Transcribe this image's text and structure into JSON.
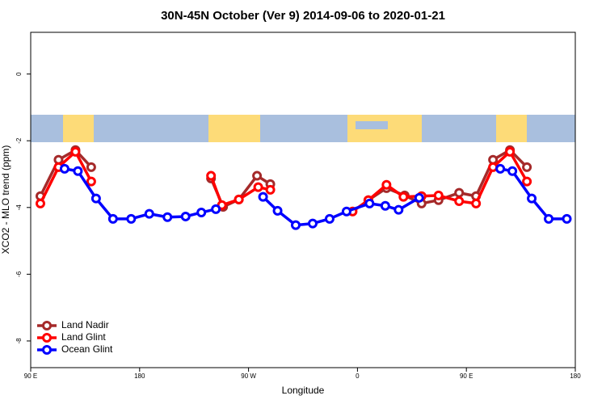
{
  "chart_data": {
    "type": "line",
    "title": "30N-45N October (Ver 9)   2014-09-06 to 2020-01-21",
    "x_label": "Longitude",
    "y_label": "XCO2 - MLO trend (ppm)",
    "xlim": [
      90,
      540
    ],
    "ylim": [
      -8.8,
      1.25
    ],
    "xticks": [
      {
        "value": 90,
        "label": "90 E"
      },
      180,
      {
        "value": 270,
        "label": "90 W"
      },
      {
        "value": 360,
        "label": "0"
      },
      {
        "value": 450,
        "label": "90 E"
      },
      {
        "value": 540,
        "label": "180"
      }
    ],
    "yticks": [
      0,
      -2,
      -4,
      -6,
      -8
    ],
    "legend": "bottomleft",
    "series": [
      {
        "name": "Land Nadir",
        "color": "#a52a2a",
        "x": [
          98,
          113,
          127,
          140,
          null,
          239,
          249,
          262,
          277,
          288,
          null,
          369,
          384,
          399,
          413,
          427,
          444,
          458,
          472,
          486,
          500
        ],
        "values": [
          -3.66,
          -2.57,
          -2.28,
          -2.79,
          null,
          -3.13,
          -3.98,
          -3.76,
          -3.05,
          -3.3,
          null,
          -3.78,
          -3.42,
          -3.64,
          -3.88,
          -3.78,
          -3.56,
          -3.66,
          -2.57,
          -2.28,
          -2.79
        ]
      },
      {
        "name": "Land Glint",
        "color": "#ff0000",
        "x": [
          98,
          113,
          127,
          140,
          null,
          239,
          248,
          262,
          278,
          288,
          null,
          356,
          369,
          384,
          398,
          413,
          427,
          444,
          458,
          472,
          486,
          500
        ],
        "values": [
          -3.88,
          -2.79,
          -2.33,
          -3.22,
          null,
          -3.05,
          -3.93,
          -3.76,
          -3.39,
          -3.47,
          null,
          -4.12,
          -3.78,
          -3.32,
          -3.68,
          -3.66,
          -3.64,
          -3.81,
          -3.88,
          -2.79,
          -2.33,
          -3.22
        ]
      },
      {
        "name": "Ocean Glint",
        "color": "#0000ff",
        "x": [
          118,
          129,
          144,
          158,
          173,
          188,
          203,
          218,
          231,
          243,
          null,
          282,
          294,
          309,
          323,
          337,
          351,
          370,
          383,
          394,
          411,
          null,
          478,
          488,
          504,
          518,
          533
        ],
        "values": [
          -2.84,
          -2.91,
          -3.73,
          -4.34,
          -4.34,
          -4.19,
          -4.29,
          -4.27,
          -4.15,
          -4.05,
          null,
          -3.68,
          -4.1,
          -4.53,
          -4.48,
          -4.34,
          -4.12,
          -3.88,
          -3.95,
          -4.07,
          -3.71,
          null,
          -2.84,
          -2.91,
          -3.73,
          -4.34,
          -4.34
        ]
      }
    ]
  }
}
